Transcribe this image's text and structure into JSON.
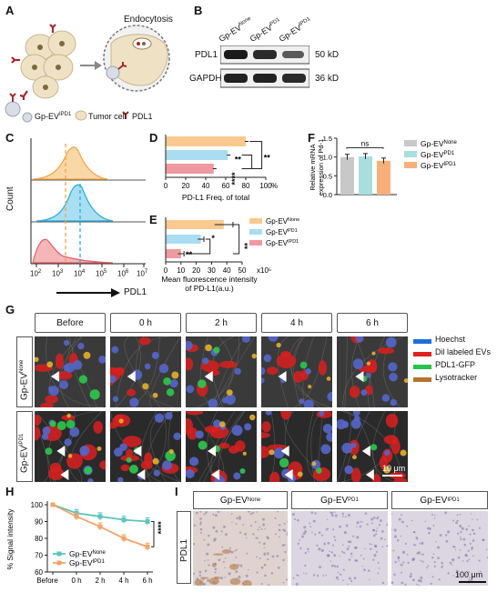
{
  "panels": {
    "A": "A",
    "B": "B",
    "C": "C",
    "D": "D",
    "E": "E",
    "F": "F",
    "G": "G",
    "H": "H",
    "I": "I"
  },
  "panelA": {
    "endocytosis": "Endocytosis",
    "legend_ev": "Gp-EV",
    "legend_ev_sup": "IPD1",
    "legend_tumor": "Tumor cell",
    "legend_pdl1": "PDL1"
  },
  "panelB": {
    "columns": [
      {
        "base": "Gp-EV",
        "sup": "None"
      },
      {
        "base": "Gp-EV",
        "sup": "PD1"
      },
      {
        "base": "Gp-EV",
        "sup": "IPD1"
      }
    ],
    "rows": [
      {
        "label": "PDL1",
        "kd": "50 kD"
      },
      {
        "label": "GAPDH",
        "kd": "36 kD"
      }
    ]
  },
  "panelC": {
    "ylabel": "Count",
    "xlabel": "PDL1",
    "ticks": [
      "10",
      "10",
      "10",
      "10",
      "10",
      "10"
    ],
    "tick_exps": [
      "2",
      "3",
      "4",
      "5",
      "6",
      "7"
    ],
    "colors": [
      "#f5b55b",
      "#3fb8e0",
      "#e5737a"
    ]
  },
  "chart_data": [
    {
      "type": "bar",
      "panel": "D",
      "orientation": "horizontal",
      "categories": [
        "Gp-EV None",
        "Gp-EV PD1",
        "Gp-EV IPD1"
      ],
      "values": [
        80,
        62,
        48
      ],
      "xlabel": "PD-L1 Freq. of total",
      "xlim": [
        0,
        100
      ],
      "xticks": [
        "0",
        "20",
        "40",
        "60",
        "80",
        "100"
      ],
      "unit": "%",
      "significance": [
        "**",
        "****",
        "**"
      ],
      "colors": [
        "#f9c990",
        "#aadcf2",
        "#ef9aa0"
      ]
    },
    {
      "type": "bar",
      "panel": "E",
      "orientation": "horizontal",
      "categories": [
        "Gp-EV None",
        "Gp-EV PD1",
        "Gp-EV IPD1"
      ],
      "values": [
        38,
        23,
        10
      ],
      "xlabel": "Mean fluorescence intensity of PD-L1(a.u.)",
      "xlim": [
        0,
        50
      ],
      "xticks": [
        "0",
        "10",
        "20",
        "30",
        "40",
        "50"
      ],
      "scale": "x10⁵",
      "significance": [
        "*",
        "**",
        "**"
      ],
      "legend": [
        {
          "base": "Gp-EV",
          "sup": "None"
        },
        {
          "base": "Gp-EV",
          "sup": "PD1"
        },
        {
          "base": "Gp-EV",
          "sup": "IPD1"
        }
      ],
      "colors": [
        "#f9c990",
        "#aadcf2",
        "#ef9aa0"
      ]
    },
    {
      "type": "bar",
      "panel": "F",
      "categories": [
        "Gp-EV None",
        "Gp-EV PD1",
        "Gp-EV IPD1"
      ],
      "values": [
        1.0,
        1.02,
        0.9
      ],
      "ylabel": "Relative mRNA expression of Pd-1",
      "ylim": [
        0,
        1.5
      ],
      "yticks": [
        "0.0",
        "0.5",
        "1.0",
        "1.5"
      ],
      "significance": [
        "ns"
      ],
      "legend": [
        {
          "base": "Gp-EV",
          "sup": "None"
        },
        {
          "base": "Gp-EV",
          "sup": "PD1"
        },
        {
          "base": "Gp-EV",
          "sup": "IPD1"
        }
      ],
      "colors": [
        "#c8c8c8",
        "#a8dede",
        "#f7b07a"
      ]
    },
    {
      "type": "line",
      "panel": "H",
      "x": [
        "Before",
        "0 h",
        "2 h",
        "4 h",
        "6 h"
      ],
      "series": [
        {
          "name": "Gp-EV None",
          "values": [
            100,
            95,
            93,
            91,
            90
          ]
        },
        {
          "name": "Gp-EV IPD1",
          "values": [
            100,
            93,
            87,
            80,
            75
          ]
        }
      ],
      "ylabel": "% Signal intensity",
      "ylim": [
        60,
        100
      ],
      "yticks": [
        "60",
        "70",
        "80",
        "90",
        "100"
      ],
      "significance": [
        "****"
      ],
      "legend": [
        {
          "base": "Gp-EV",
          "sup": "None"
        },
        {
          "base": "Gp-EV",
          "sup": "IPD1"
        }
      ],
      "colors": [
        "#5cc4bb",
        "#f3a36a"
      ]
    }
  ],
  "panelD_text": {
    "bar_labels": [
      "",
      "",
      ""
    ]
  },
  "panelG": {
    "times": [
      "Before",
      "0 h",
      "2 h",
      "4 h",
      "6 h"
    ],
    "rows": [
      {
        "base": "Gp-EV",
        "sup": "None"
      },
      {
        "base": "Gp-EV",
        "sup": "IPD1"
      }
    ],
    "legend": [
      {
        "label": "Hoechst",
        "color": "#1e6fd9"
      },
      {
        "label": "Dil labeled EVs",
        "color": "#e0201e"
      },
      {
        "label": "PDL1-GFP",
        "color": "#27c24c"
      },
      {
        "label": "Lysotracker",
        "color": "#b5722a"
      }
    ],
    "scalebar": "10 μm"
  },
  "panelI": {
    "columns": [
      {
        "base": "Gp-EV",
        "sup": "None"
      },
      {
        "base": "Gp-EV",
        "sup": "PD1"
      },
      {
        "base": "Gp-EV",
        "sup": "IPD1"
      }
    ],
    "rowlabel": "PDL1",
    "scalebar": "100 μm"
  }
}
